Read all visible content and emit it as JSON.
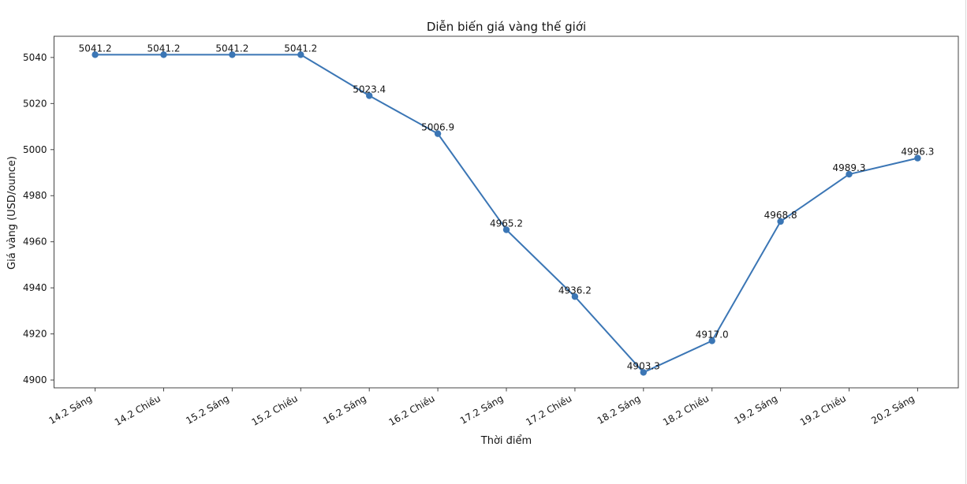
{
  "figure": {
    "background": "#ffffff",
    "window_edge_color": "#d9d9d9",
    "spine_color": "#444444",
    "text_color": "#141414"
  },
  "chart_data": {
    "type": "line",
    "title": "Diễn biến giá vàng thế giới",
    "xlabel": "Thời điểm",
    "ylabel": "Giá vàng (USD/ounce)",
    "categories": [
      "14.2 Sáng",
      "14.2 Chiều",
      "15.2 Sáng",
      "15.2 Chiều",
      "16.2 Sáng",
      "16.2 Chiều",
      "17.2 Sáng",
      "17.2 Chiều",
      "18.2 Sáng",
      "18.2 Chiều",
      "19.2 Sáng",
      "19.2 Chiều",
      "20.2 Sáng"
    ],
    "values": [
      5041.2,
      5041.2,
      5041.2,
      5041.2,
      5023.4,
      5006.9,
      4965.2,
      4936.2,
      4903.3,
      4917.0,
      4968.8,
      4989.3,
      4996.3
    ],
    "point_labels": [
      "5041.2",
      "5041.2",
      "5041.2",
      "5041.2",
      "5023.4",
      "5006.9",
      "4965.2",
      "4936.2",
      "4903.3",
      "4917.0",
      "4968.8",
      "4989.3",
      "4996.3"
    ],
    "y_ticks": [
      4900,
      4920,
      4940,
      4960,
      4980,
      5000,
      5020,
      5040
    ],
    "ylim": [
      4896.6,
      5049.2
    ],
    "grid": false,
    "legend": "none",
    "x_tick_rotation": 30,
    "line_color": "#3b76b5",
    "marker_color": "#3b76b5",
    "marker": "circle"
  }
}
